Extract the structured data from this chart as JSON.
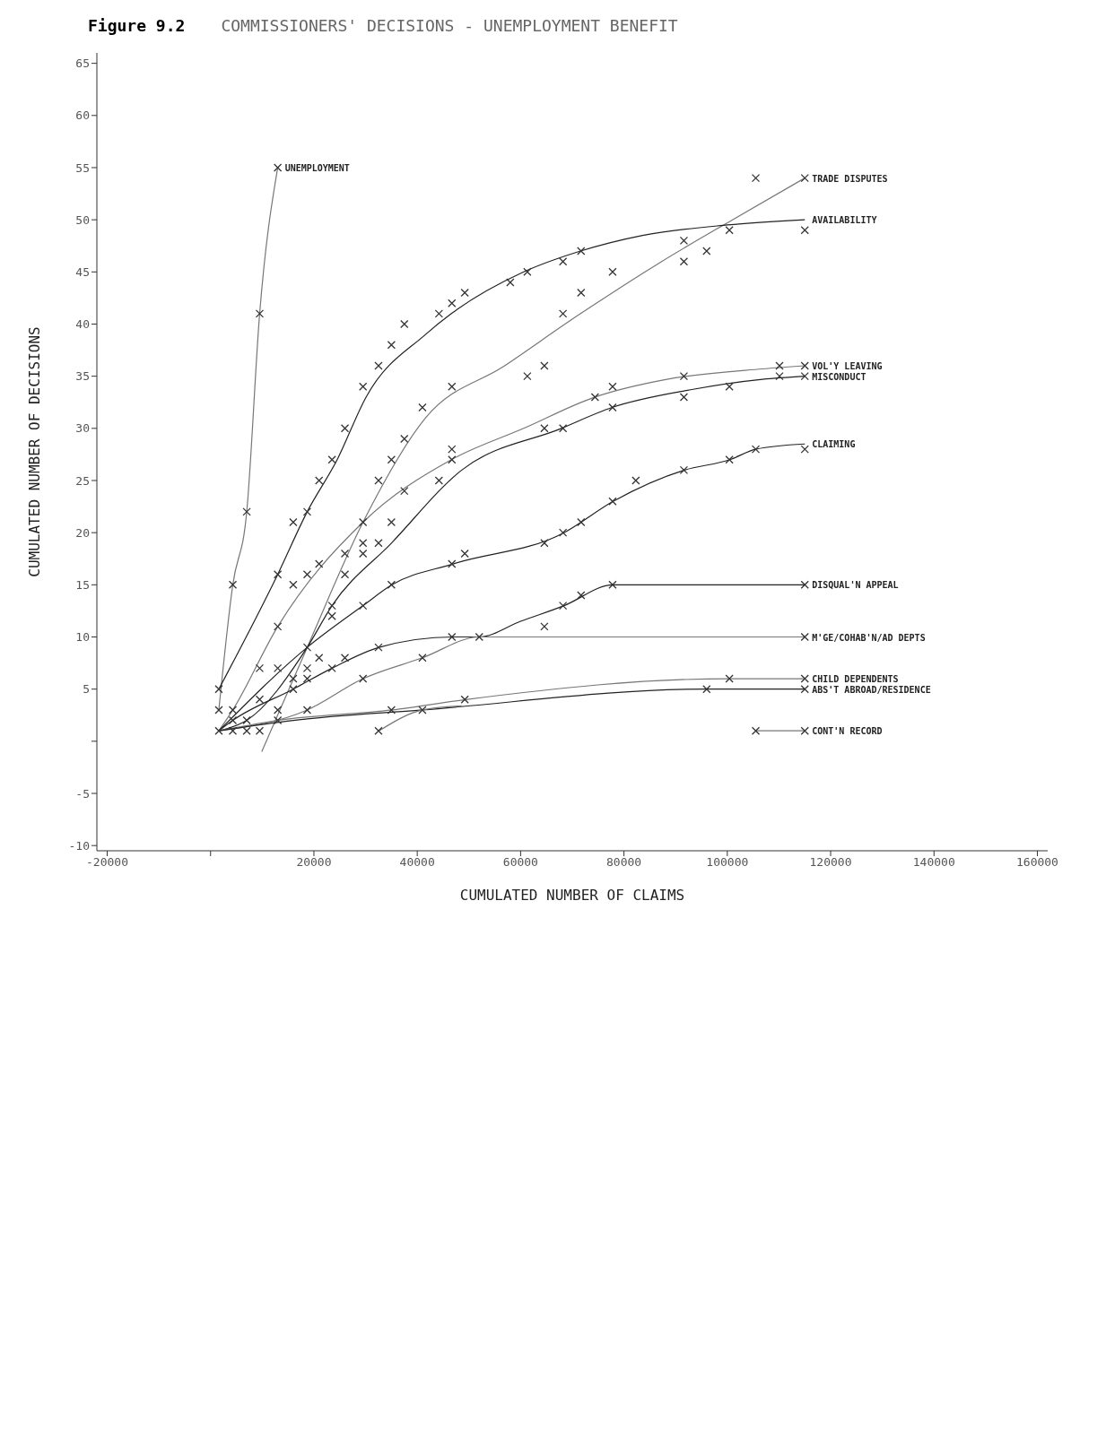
{
  "chart_data": {
    "type": "line",
    "title": "COMMISSIONERS' DECISIONS - UNEMPLOYMENT BENEFIT",
    "annotations": [
      "Figure 9.2"
    ],
    "xlabel": "CUMULATED NUMBER OF CLAIMS",
    "ylabel": "CUMULATED NUMBER OF DECISIONS",
    "xlim": [
      -22000,
      162000
    ],
    "xticks": [
      -20000,
      {
        "value": 0,
        "label": null
      },
      20000,
      40000,
      60000,
      80000,
      100000,
      120000,
      140000,
      160000
    ],
    "ylim": [
      -10.5,
      66
    ],
    "yticks": [
      -10,
      -5,
      {
        "value": 0,
        "label": null
      },
      5,
      10,
      15,
      20,
      25,
      30,
      35,
      40,
      45,
      50,
      55,
      60,
      65
    ],
    "marker": "none",
    "line_style": "solid",
    "series": [
      {
        "type": "scatter",
        "marker": "cross",
        "color": "#333333",
        "x": [
          1600,
          1600,
          1600,
          4300,
          4300,
          4300,
          4300,
          7000,
          7000,
          7000,
          9500,
          9500,
          9500,
          9500,
          13000,
          13000,
          13000,
          13000,
          13000,
          13000,
          16000,
          16000,
          16000,
          16000,
          18700,
          18700,
          18700,
          18700,
          18700,
          18700,
          21000,
          21000,
          21000,
          23500,
          23500,
          23500,
          23500,
          26000,
          26000,
          26000,
          26000,
          29500,
          29500,
          29500,
          29500,
          29500,
          29500,
          32500,
          32500,
          32500,
          32500,
          32500,
          35000,
          35000,
          35000,
          35000,
          35000,
          37500,
          37500,
          37500,
          41000,
          41000,
          41000,
          44200,
          44200,
          46700,
          46700,
          46700,
          46700,
          46700,
          46700,
          49200,
          49200,
          49200,
          52000,
          58000,
          61300,
          61300,
          64600,
          64600,
          64600,
          64600,
          68200,
          68200,
          68200,
          68200,
          68200,
          71700,
          71700,
          71700,
          71700,
          74400,
          77800,
          77800,
          77800,
          77800,
          77800,
          82300,
          91600,
          91600,
          91600,
          91600,
          91600,
          96000,
          96000,
          100400,
          100400,
          100400,
          100400,
          105500,
          105500,
          105500,
          110100,
          110100,
          115000,
          115000,
          115000,
          115000,
          115000,
          115000,
          115000,
          115000,
          115000,
          115000
        ],
        "values": [
          5,
          3,
          1,
          15,
          3,
          2,
          1,
          22,
          2,
          1,
          41,
          7,
          4,
          1,
          55,
          16,
          11,
          7,
          3,
          2,
          21,
          15,
          6,
          5,
          22,
          16,
          9,
          7,
          6,
          3,
          25,
          17,
          8,
          27,
          13,
          12,
          7,
          30,
          18,
          16,
          8,
          34,
          21,
          19,
          18,
          13,
          6,
          36,
          25,
          19,
          9,
          1,
          38,
          27,
          21,
          15,
          3,
          40,
          29,
          24,
          32,
          8,
          3,
          41,
          25,
          42,
          34,
          28,
          27,
          17,
          10,
          43,
          18,
          4,
          10,
          44,
          45,
          35,
          36,
          30,
          19,
          11,
          46,
          41,
          30,
          20,
          13,
          47,
          43,
          21,
          14,
          33,
          45,
          34,
          32,
          23,
          15,
          25,
          48,
          46,
          35,
          33,
          26,
          47,
          5,
          49,
          34,
          27,
          6,
          54,
          28,
          1,
          36,
          35,
          54,
          49,
          36,
          35,
          28,
          15,
          10,
          6,
          5,
          1
        ]
      },
      {
        "name": "UNEMPLOYMENT",
        "color": "#777777",
        "x": [
          1600,
          4300,
          7000,
          9500,
          13000
        ],
        "values": [
          3,
          15,
          22,
          41,
          55
        ]
      },
      {
        "name": "TRADE DISPUTES",
        "color": "#777777",
        "x": [
          9900,
          18700,
          29500,
          41600,
          56900,
          71600,
          87300,
          101000,
          115000
        ],
        "values": [
          -1,
          9,
          21,
          31,
          36,
          41,
          46,
          50,
          54
        ]
      },
      {
        "name": "AVAILABILITY",
        "color": "#222222",
        "x": [
          1600,
          13000,
          18700,
          24500,
          30100,
          41600,
          46600,
          60600,
          71600,
          83600,
          100000,
          115000
        ],
        "values": [
          5,
          16,
          22,
          27,
          33,
          39,
          41,
          45,
          47,
          48.5,
          49.5,
          50
        ]
      },
      {
        "name": "VOL'Y LEAVING",
        "color": "#777777",
        "x": [
          1600,
          4300,
          13000,
          29500,
          46600,
          60600,
          74400,
          88300,
          106800,
          115000
        ],
        "values": [
          1,
          3,
          11,
          21,
          27,
          30,
          33,
          34.7,
          35.7,
          36
        ]
      },
      {
        "name": "MISCONDUCT",
        "color": "#222222",
        "x": [
          1600,
          7000,
          18700,
          23500,
          35000,
          48600,
          67900,
          77700,
          92900,
          106800,
          115000
        ],
        "values": [
          1,
          2,
          9,
          13,
          19,
          26,
          30,
          32,
          33.7,
          34.7,
          35
        ]
      },
      {
        "name": "CLAIMING",
        "color": "#222222",
        "x": [
          1600,
          18700,
          29500,
          35100,
          46900,
          68400,
          77900,
          91700,
          100500,
          105500,
          115000
        ],
        "values": [
          1,
          9,
          13,
          15,
          17,
          20,
          23,
          26,
          27,
          28,
          28.5
        ]
      },
      {
        "name": "DISQUAL'N APPEAL",
        "color": "#222222",
        "x": [
          1600,
          4300,
          16000,
          23500,
          32600,
          46900,
          52000,
          60000,
          68400,
          77900,
          115000
        ],
        "values": [
          1,
          2,
          5,
          7,
          9,
          10,
          10,
          11.5,
          13,
          15,
          15
        ]
      },
      {
        "name": "M'GE/COHAB'N/AD DEPTS",
        "color": "#777777",
        "x": [
          1600,
          18700,
          29500,
          41000,
          52000,
          115000
        ],
        "values": [
          1,
          3,
          6,
          8,
          10,
          10
        ]
      },
      {
        "name": "CHILD DEPENDENTS",
        "color": "#777777",
        "x": [
          1600,
          13000,
          35100,
          49400,
          100400,
          115000
        ],
        "values": [
          1,
          2,
          3,
          4,
          6,
          6
        ]
      },
      {
        "name": "ABS'T ABROAD/RESIDENCE",
        "color": "#222222",
        "x": [
          1600,
          16000,
          41000,
          96000,
          115000
        ],
        "values": [
          1,
          2,
          3,
          5,
          5
        ]
      },
      {
        "name": "CONT'N RECORD",
        "color": "#777777",
        "x": [
          32600,
          41000,
          48600,
          77000,
          105500,
          115000
        ],
        "values": [
          1,
          3,
          3.4,
          null,
          1,
          1
        ]
      }
    ]
  }
}
